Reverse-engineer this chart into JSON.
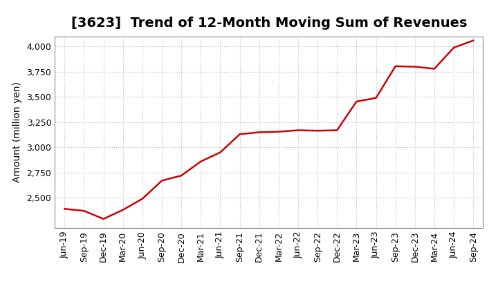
{
  "title": "[3623]  Trend of 12-Month Moving Sum of Revenues",
  "ylabel": "Amount (million yen)",
  "line_color": "#cc0000",
  "line_width": 1.8,
  "background_color": "#ffffff",
  "grid_color": "#bbbbbb",
  "xlabels": [
    "Jun-19",
    "Sep-19",
    "Dec-19",
    "Mar-20",
    "Jun-20",
    "Sep-20",
    "Dec-20",
    "Mar-21",
    "Jun-21",
    "Sep-21",
    "Dec-21",
    "Mar-22",
    "Jun-22",
    "Sep-22",
    "Dec-22",
    "Mar-23",
    "Jun-23",
    "Sep-23",
    "Dec-23",
    "Mar-24",
    "Jun-24",
    "Sep-24"
  ],
  "values": [
    2390,
    2370,
    2290,
    2380,
    2490,
    2670,
    2720,
    2860,
    2950,
    3130,
    3150,
    3155,
    3170,
    3165,
    3170,
    3455,
    3490,
    3805,
    3800,
    3780,
    3990,
    4060
  ],
  "ylim": [
    2200,
    4100
  ],
  "yticks": [
    2500,
    2750,
    3000,
    3250,
    3500,
    3750,
    4000
  ],
  "title_fontsize": 14,
  "ylabel_fontsize": 10,
  "tick_fontsize": 9
}
